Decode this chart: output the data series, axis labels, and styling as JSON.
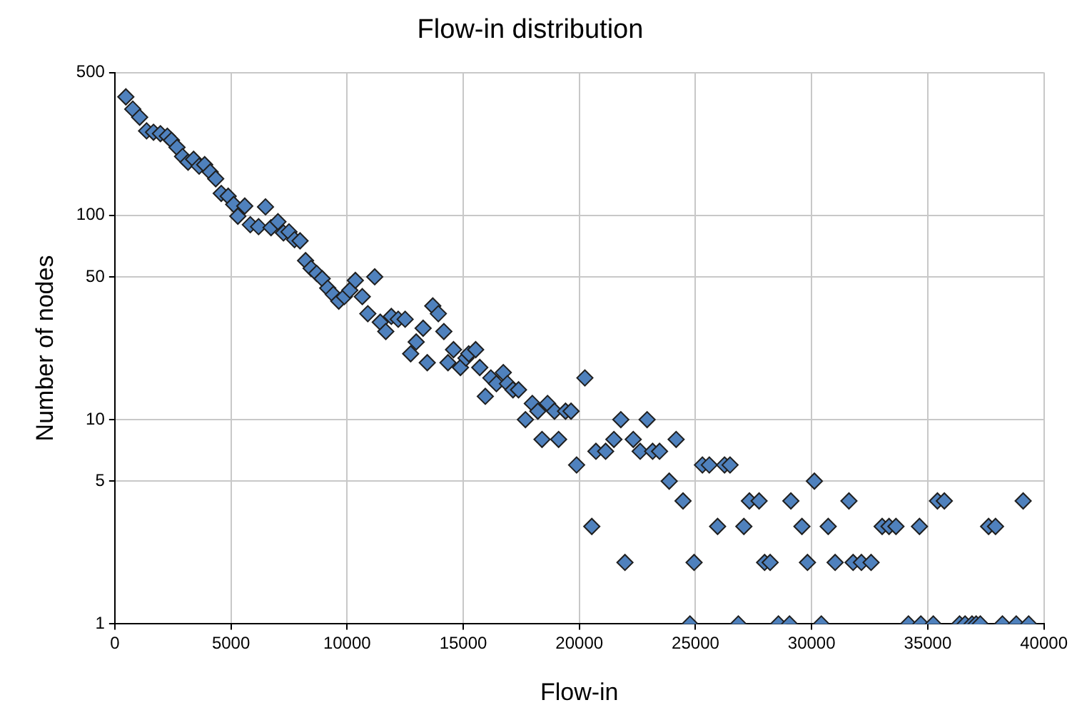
{
  "chart_data": {
    "type": "scatter",
    "title": "Flow-in distribution",
    "xlabel": "Flow-in",
    "ylabel": "Number of nodes",
    "log": "y",
    "grid": true,
    "marker": "diamond",
    "legend": false,
    "xlim": [
      0,
      40000
    ],
    "xticks": [
      0,
      5000,
      10000,
      15000,
      20000,
      25000,
      30000,
      35000,
      40000
    ],
    "ylim": [
      1,
      500
    ],
    "yticks": [
      1,
      5,
      10,
      50,
      100,
      500
    ],
    "series": [
      {
        "color": "#4f81bd",
        "x": [
          476,
          774,
          1071,
          1369,
          1667,
          1964,
          2262,
          2440,
          2679,
          2917,
          3155,
          3393,
          3631,
          3869,
          4107,
          4345,
          4583,
          4881,
          5119,
          5298,
          5595,
          5833,
          6190,
          6488,
          6726,
          7024,
          7262,
          7500,
          7738,
          7976,
          8214,
          8452,
          8690,
          8929,
          9167,
          9405,
          9643,
          9881,
          10119,
          10357,
          10655,
          10893,
          11190,
          11429,
          11667,
          11905,
          12202,
          12500,
          12738,
          12976,
          13274,
          13452,
          13690,
          13929,
          14167,
          14345,
          14583,
          14881,
          15119,
          15238,
          15536,
          15714,
          15952,
          16190,
          16429,
          16726,
          16905,
          17143,
          17381,
          17679,
          17976,
          18214,
          18393,
          18631,
          18929,
          19107,
          19405,
          19643,
          19881,
          20238,
          20536,
          20714,
          21131,
          21488,
          21786,
          21964,
          22321,
          22619,
          22917,
          23155,
          23452,
          23869,
          24167,
          24464,
          24762,
          24940,
          25298,
          25595,
          25952,
          26250,
          26488,
          26845,
          27083,
          27321,
          27738,
          27976,
          28214,
          28571,
          29048,
          29107,
          29583,
          29821,
          30119,
          30417,
          30714,
          31012,
          31607,
          31786,
          32143,
          32560,
          33036,
          33333,
          33631,
          34167,
          34643,
          34702,
          35238,
          35417,
          35714,
          36369,
          36607,
          36905,
          37083,
          37262,
          37619,
          37917,
          38214,
          38810,
          39107,
          39345
        ],
        "values": [
          380,
          331,
          302,
          259,
          255,
          251,
          244,
          233,
          215,
          194,
          182,
          188,
          174,
          177,
          163,
          151,
          128,
          124,
          113,
          99,
          111,
          90,
          88,
          110,
          87,
          93,
          82,
          83,
          76,
          75,
          60,
          55,
          52,
          49,
          44,
          41,
          38,
          40,
          43,
          48,
          40,
          33,
          50,
          30,
          27,
          32,
          31,
          31,
          21,
          24,
          28,
          19,
          36,
          33,
          27,
          19,
          22,
          18,
          20,
          21,
          22,
          18,
          13,
          16,
          15,
          17,
          15,
          14,
          14,
          10,
          12,
          11,
          8,
          12,
          11,
          8,
          11,
          11,
          6,
          16,
          3,
          7,
          7,
          8,
          10,
          2,
          8,
          7,
          10,
          7,
          7,
          5,
          8,
          4,
          1,
          2,
          6,
          6,
          3,
          6,
          6,
          1,
          3,
          4,
          4,
          2,
          2,
          1,
          1,
          4,
          3,
          2,
          5,
          1,
          3,
          2,
          4,
          2,
          2,
          2,
          3,
          3,
          3,
          1,
          3,
          1,
          1,
          4,
          4,
          1,
          1,
          1,
          1,
          1,
          3,
          3,
          1,
          1,
          4,
          1
        ]
      }
    ]
  }
}
